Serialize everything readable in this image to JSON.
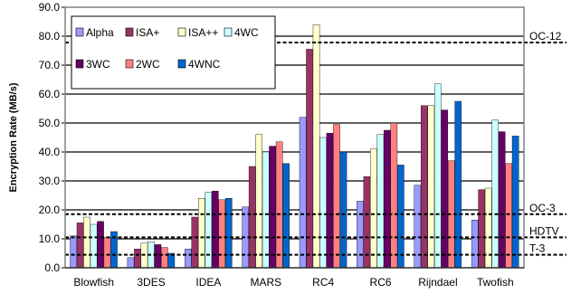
{
  "chart_data": {
    "type": "bar",
    "title": "",
    "xlabel": "",
    "ylabel": "Encryption Rate (MB/s)",
    "ylim": [
      0,
      90
    ],
    "yticks": [
      "0.0",
      "10.0",
      "20.0",
      "30.0",
      "40.0",
      "50.0",
      "60.0",
      "70.0",
      "80.0",
      "90.0"
    ],
    "grid": true,
    "legend_position": "top-left",
    "categories": [
      "Blowfish",
      "3DES",
      "IDEA",
      "MARS",
      "RC4",
      "RC6",
      "Rijndael",
      "Twofish"
    ],
    "series": [
      {
        "name": "Alpha",
        "color": "#9999ff",
        "values": [
          11.0,
          3.5,
          6.5,
          21.0,
          52.0,
          23.0,
          28.5,
          16.5
        ]
      },
      {
        "name": "ISA+",
        "color": "#993366",
        "values": [
          15.5,
          6.5,
          17.5,
          35.0,
          75.5,
          31.5,
          56.0,
          27.0
        ]
      },
      {
        "name": "ISA++",
        "color": "#ffffcc",
        "values": [
          17.5,
          8.5,
          24.0,
          46.0,
          84.0,
          41.0,
          56.0,
          27.5
        ]
      },
      {
        "name": "4WC",
        "color": "#ccffff",
        "values": [
          15.0,
          9.0,
          26.0,
          40.0,
          45.0,
          46.0,
          63.5,
          51.0
        ]
      },
      {
        "name": "3WC",
        "color": "#660066",
        "values": [
          16.0,
          8.0,
          26.5,
          42.0,
          46.5,
          47.5,
          54.5,
          47.0
        ]
      },
      {
        "name": "2WC",
        "color": "#ff8080",
        "values": [
          10.5,
          7.0,
          23.5,
          43.5,
          49.5,
          50.0,
          37.0,
          36.0
        ]
      },
      {
        "name": "4WNC",
        "color": "#0066cc",
        "values": [
          12.5,
          5.0,
          24.0,
          36.0,
          40.0,
          35.5,
          57.5,
          45.5
        ]
      }
    ],
    "reference_lines": [
      {
        "label": "OC-12",
        "value": 77.8
      },
      {
        "label": "OC-3",
        "value": 18.5
      },
      {
        "label": "HDTV",
        "value": 10.5
      },
      {
        "label": "T-3",
        "value": 4.5
      }
    ]
  }
}
